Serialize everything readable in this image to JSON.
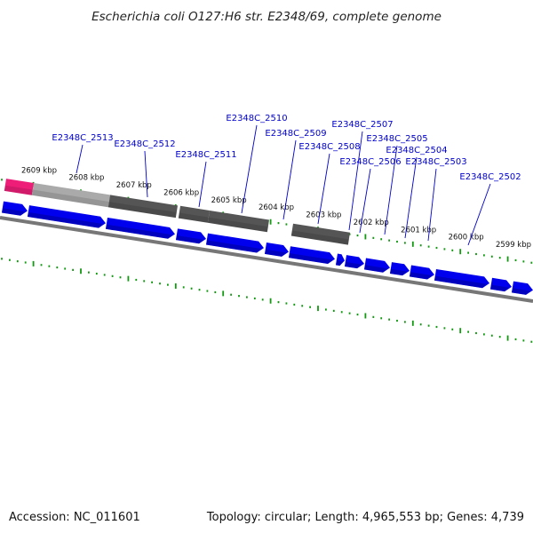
{
  "title": "Escherichia coli O127:H6 str. E2348/69, complete genome",
  "footer": {
    "accession": "Accession: NC_011601",
    "summary": "Topology: circular; Length: 4,965,553 bp; Genes: 4,739"
  },
  "colors": {
    "cds": "#0000ee",
    "cds_light": "#6a6aff",
    "gene_gray": "#555555",
    "gene_gray_light": "#aaaaaa",
    "highlight": "#ee1e78",
    "tick": "#119911",
    "backbone": "#777777",
    "label": "#0000cc",
    "leader": "#0000cc"
  },
  "scale": {
    "kbp_labels": [
      "2609 kbp",
      "2608 kbp",
      "2607 kbp",
      "2606 kbp",
      "2605 kbp",
      "2604 kbp",
      "2603 kbp",
      "2602 kbp",
      "2601 kbp",
      "2600 kbp",
      "2599 kbp"
    ]
  },
  "genes": [
    {
      "label": "E2348C_2513"
    },
    {
      "label": "E2348C_2512"
    },
    {
      "label": "E2348C_2511"
    },
    {
      "label": "E2348C_2510"
    },
    {
      "label": "E2348C_2509"
    },
    {
      "label": "E2348C_2508"
    },
    {
      "label": "E2348C_2507"
    },
    {
      "label": "E2348C_2506"
    },
    {
      "label": "E2348C_2505"
    },
    {
      "label": "E2348C_2504"
    },
    {
      "label": "E2348C_2503"
    },
    {
      "label": "E2348C_2502"
    }
  ]
}
